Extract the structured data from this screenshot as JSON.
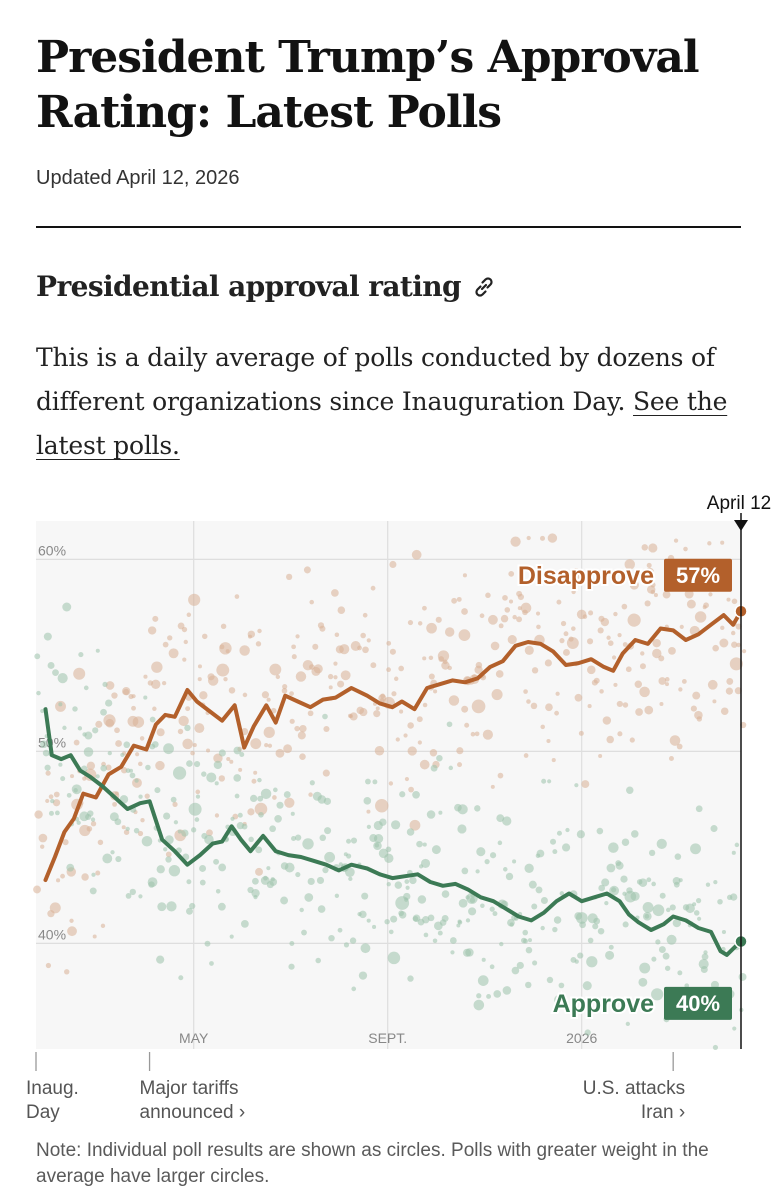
{
  "headline": "President Trump’s Approval Rating: Latest Polls",
  "updated": "Updated April 12, 2026",
  "section": {
    "title": "Presidential approval rating",
    "description": "This is a daily average of polls conducted by dozens of different organizations since Inauguration Day.",
    "link_text": "See the latest polls."
  },
  "note": "Note: Individual poll results are shown as circles. Polls with greater weight in the average have larger circles.",
  "colors": {
    "disapprove": "#b3602b",
    "approve": "#3c7a55",
    "disapprove_dots": "#d9b196",
    "approve_dots": "#9cc2ab",
    "plot_bg": "#f7f7f7",
    "grid": "#dedede"
  },
  "chart_data": {
    "type": "line",
    "title": "Presidential approval rating",
    "current_date_label": "April 12",
    "ylim": [
      34.5,
      62
    ],
    "y_ticks": [
      {
        "value": 40,
        "label": "40%"
      },
      {
        "value": 50,
        "label": "50%"
      },
      {
        "value": 60,
        "label": "60%"
      }
    ],
    "x_ticks": [
      {
        "day": 100,
        "label": "MAY"
      },
      {
        "day": 223,
        "label": "SEPT."
      },
      {
        "day": 346,
        "label": "2026"
      }
    ],
    "x_range_days": [
      0,
      447
    ],
    "events": [
      {
        "day": 0,
        "label_line1": "Inaug.",
        "label_line2": "Day"
      },
      {
        "day": 72,
        "label_line1": "Major tariffs",
        "label_line2": "announced ›"
      },
      {
        "day": 404,
        "label_line1": "U.S. attacks",
        "label_line2": "Iran ›"
      }
    ],
    "series": [
      {
        "name": "Disapprove",
        "end_label": "57%",
        "points": [
          [
            6,
            43.3
          ],
          [
            12,
            44.5
          ],
          [
            18,
            45.8
          ],
          [
            24,
            46.5
          ],
          [
            30,
            47.8
          ],
          [
            38,
            47.6
          ],
          [
            46,
            48.8
          ],
          [
            54,
            49.2
          ],
          [
            62,
            50.3
          ],
          [
            70,
            50.1
          ],
          [
            76,
            51.4
          ],
          [
            82,
            51.9
          ],
          [
            88,
            51.8
          ],
          [
            96,
            53.2
          ],
          [
            102,
            52.6
          ],
          [
            110,
            52.1
          ],
          [
            118,
            51.6
          ],
          [
            126,
            52.4
          ],
          [
            132,
            50.2
          ],
          [
            138,
            51.3
          ],
          [
            146,
            52.4
          ],
          [
            152,
            51.5
          ],
          [
            158,
            52.9
          ],
          [
            166,
            52.6
          ],
          [
            174,
            52.3
          ],
          [
            182,
            52.7
          ],
          [
            190,
            52.8
          ],
          [
            200,
            53.3
          ],
          [
            210,
            52.9
          ],
          [
            218,
            52.5
          ],
          [
            226,
            52.3
          ],
          [
            232,
            52.6
          ],
          [
            240,
            52.2
          ],
          [
            248,
            53.3
          ],
          [
            256,
            53.5
          ],
          [
            264,
            53.7
          ],
          [
            272,
            53.6
          ],
          [
            280,
            53.8
          ],
          [
            288,
            54.4
          ],
          [
            296,
            54.7
          ],
          [
            304,
            55.5
          ],
          [
            312,
            55.7
          ],
          [
            320,
            55.6
          ],
          [
            328,
            55.2
          ],
          [
            336,
            54.5
          ],
          [
            344,
            54.6
          ],
          [
            352,
            54.8
          ],
          [
            360,
            54.4
          ],
          [
            366,
            54.2
          ],
          [
            372,
            55.1
          ],
          [
            380,
            55.8
          ],
          [
            388,
            55.6
          ],
          [
            396,
            56.4
          ],
          [
            404,
            56.3
          ],
          [
            412,
            55.8
          ],
          [
            420,
            56.1
          ],
          [
            428,
            56.6
          ],
          [
            436,
            57.1
          ],
          [
            442,
            56.6
          ],
          [
            447,
            57.3
          ]
        ]
      },
      {
        "name": "Approve",
        "end_label": "40%",
        "points": [
          [
            6,
            52.2
          ],
          [
            10,
            49.8
          ],
          [
            16,
            49.6
          ],
          [
            22,
            49.8
          ],
          [
            28,
            49.0
          ],
          [
            34,
            48.7
          ],
          [
            42,
            48.2
          ],
          [
            50,
            47.6
          ],
          [
            58,
            47.0
          ],
          [
            66,
            47.3
          ],
          [
            72,
            47.4
          ],
          [
            80,
            45.4
          ],
          [
            88,
            44.8
          ],
          [
            96,
            44.1
          ],
          [
            104,
            44.6
          ],
          [
            112,
            45.2
          ],
          [
            118,
            45.3
          ],
          [
            124,
            46.1
          ],
          [
            130,
            45.4
          ],
          [
            136,
            44.8
          ],
          [
            144,
            45.6
          ],
          [
            152,
            44.8
          ],
          [
            160,
            44.6
          ],
          [
            168,
            44.5
          ],
          [
            176,
            44.3
          ],
          [
            184,
            44.1
          ],
          [
            192,
            43.8
          ],
          [
            200,
            44.1
          ],
          [
            210,
            43.9
          ],
          [
            218,
            43.6
          ],
          [
            226,
            43.4
          ],
          [
            234,
            43.5
          ],
          [
            242,
            43.6
          ],
          [
            250,
            43.2
          ],
          [
            258,
            43.0
          ],
          [
            266,
            43.1
          ],
          [
            274,
            42.8
          ],
          [
            282,
            42.4
          ],
          [
            290,
            42.2
          ],
          [
            298,
            41.8
          ],
          [
            306,
            41.4
          ],
          [
            314,
            41.2
          ],
          [
            322,
            41.6
          ],
          [
            330,
            42.2
          ],
          [
            338,
            42.6
          ],
          [
            346,
            42.2
          ],
          [
            354,
            42.4
          ],
          [
            362,
            42.6
          ],
          [
            370,
            42.2
          ],
          [
            376,
            41.5
          ],
          [
            382,
            41.1
          ],
          [
            390,
            40.7
          ],
          [
            398,
            41.0
          ],
          [
            404,
            41.4
          ],
          [
            412,
            41.2
          ],
          [
            420,
            40.8
          ],
          [
            428,
            40.6
          ],
          [
            434,
            39.6
          ],
          [
            438,
            39.4
          ],
          [
            443,
            39.8
          ],
          [
            447,
            40.1
          ]
        ]
      }
    ]
  }
}
